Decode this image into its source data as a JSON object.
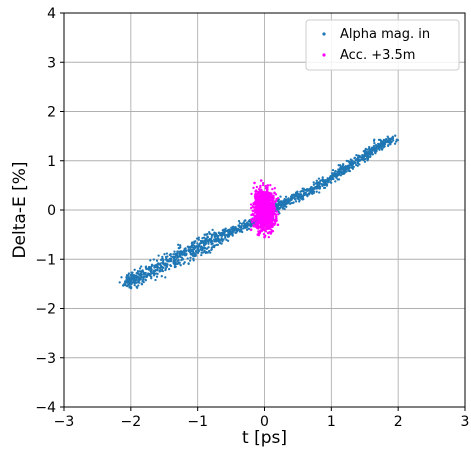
{
  "chart_data": {
    "type": "scatter",
    "xlabel": "t [ps]",
    "ylabel": "Delta-E [%]",
    "xlim": [
      -3,
      3
    ],
    "ylim": [
      -4,
      4
    ],
    "xticks": [
      -3,
      -2,
      -1,
      0,
      1,
      2,
      3
    ],
    "xtick_labels": [
      "−3",
      "−2",
      "−1",
      "0",
      "1",
      "2",
      "3"
    ],
    "yticks": [
      -4,
      -3,
      -2,
      -1,
      0,
      1,
      2,
      3,
      4
    ],
    "ytick_labels": [
      "−4",
      "−3",
      "−2",
      "−1",
      "0",
      "1",
      "2",
      "3",
      "4"
    ],
    "grid": true,
    "legend_position": "top-right",
    "series": [
      {
        "name": "Alpha mag. in",
        "color": "#1f77b4",
        "x": [
          -2.05,
          -2.0,
          -1.95,
          -1.9,
          -1.8,
          -1.7,
          -1.6,
          -1.5,
          -1.4,
          -1.3,
          -1.2,
          -1.1,
          -1.0,
          -0.9,
          -0.8,
          -0.7,
          -0.6,
          -0.5,
          -0.4,
          -0.3,
          -0.2,
          -0.1,
          0.0,
          0.1,
          0.2,
          0.3,
          0.4,
          0.5,
          0.6,
          0.7,
          0.8,
          0.9,
          1.0,
          1.1,
          1.2,
          1.3,
          1.4,
          1.5,
          1.6,
          1.7,
          1.8,
          1.9
        ],
        "y": [
          -1.47,
          -1.44,
          -1.4,
          -1.36,
          -1.3,
          -1.24,
          -1.17,
          -1.1,
          -1.03,
          -0.96,
          -0.9,
          -0.83,
          -0.77,
          -0.7,
          -0.63,
          -0.57,
          -0.5,
          -0.45,
          -0.39,
          -0.33,
          -0.27,
          -0.2,
          -0.12,
          -0.02,
          0.07,
          0.15,
          0.21,
          0.27,
          0.34,
          0.4,
          0.48,
          0.56,
          0.65,
          0.74,
          0.83,
          0.92,
          1.01,
          1.1,
          1.19,
          1.28,
          1.37,
          1.45
        ]
      },
      {
        "name": "Acc. +3.5m",
        "color": "#ff00ff",
        "x": [
          -0.2,
          -0.15,
          -0.1,
          -0.05,
          0.0,
          0.05,
          0.1,
          0.15,
          0.2
        ],
        "y": [
          -0.4,
          0.55,
          -0.5,
          0.6,
          -0.55,
          0.5,
          -0.45,
          0.35,
          -0.3
        ]
      }
    ]
  }
}
